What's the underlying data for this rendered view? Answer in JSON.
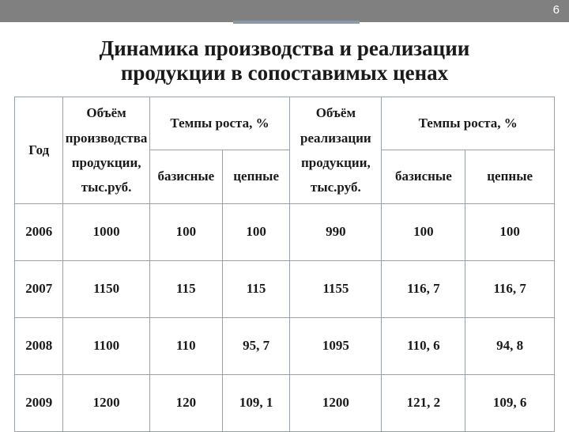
{
  "page_number": "6",
  "title_line1": "Динамика производства и реализации",
  "title_line2": "продукции в сопоставимых ценах",
  "accent_color": "#8b98aa",
  "topbar_color": "#808080",
  "border_color": "#9aa0a8",
  "headers": {
    "year": "Год",
    "vol_prod_l1": "Объём",
    "vol_prod_l2": "производства",
    "vol_prod_l3": "продукции,",
    "vol_prod_l4": "тыс.руб.",
    "growth": "Темпы роста, %",
    "base": "базисные",
    "chain": "цепные",
    "vol_real_l1": "Объём",
    "vol_real_l2": "реализации",
    "vol_real_l3": "продукции,",
    "vol_real_l4": "тыс.руб."
  },
  "rows": [
    {
      "year": "2006",
      "prod": "1000",
      "pbase": "100",
      "pchain": "100",
      "real": "990",
      "rbase": "100",
      "rchain": "100"
    },
    {
      "year": "2007",
      "prod": "1150",
      "pbase": "115",
      "pchain": "115",
      "real": "1155",
      "rbase": "116, 7",
      "rchain": "116, 7"
    },
    {
      "year": "2008",
      "prod": "1100",
      "pbase": "110",
      "pchain": "95, 7",
      "real": "1095",
      "rbase": "110, 6",
      "rchain": "94, 8"
    },
    {
      "year": "2009",
      "prod": "1200",
      "pbase": "120",
      "pchain": "109, 1",
      "real": "1200",
      "rbase": "121, 2",
      "rchain": "109, 6"
    }
  ]
}
